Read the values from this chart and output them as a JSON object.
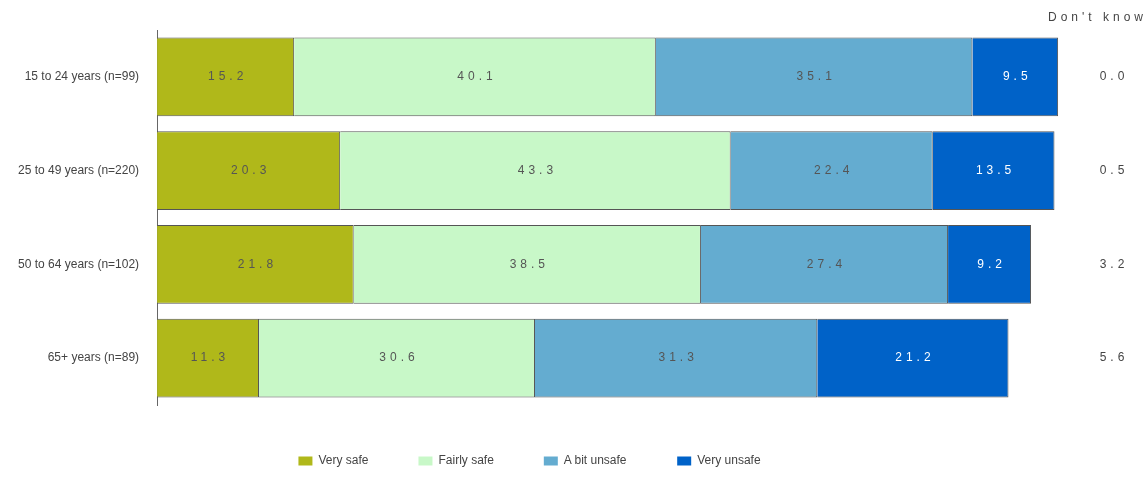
{
  "chart_data": {
    "type": "bar",
    "orientation": "horizontal",
    "stacked": true,
    "categories": [
      "15 to 24 years (n=99)",
      "25 to 49 years (n=220)",
      "50 to 64 years (n=102)",
      "65+ years (n=89)"
    ],
    "series": [
      {
        "name": "Very safe",
        "color": "#b0b81a",
        "values": [
          15.2,
          20.3,
          21.8,
          11.3
        ]
      },
      {
        "name": "Fairly safe",
        "color": "#c8f8c8",
        "values": [
          40.1,
          43.3,
          38.5,
          30.6
        ]
      },
      {
        "name": "A bit unsafe",
        "color": "#64acd0",
        "values": [
          35.1,
          22.4,
          27.4,
          31.3
        ]
      },
      {
        "name": "Very unsafe",
        "color": "#0062c8",
        "values": [
          9.5,
          13.5,
          9.2,
          21.2
        ]
      }
    ],
    "xlim": [
      0,
      100
    ],
    "tick_labels": "y",
    "grid": false,
    "legend": "bottom",
    "data_labels": true,
    "annotations": [
      "Don't know",
      "0.0",
      "0.5",
      "3.2",
      "5.6"
    ]
  }
}
